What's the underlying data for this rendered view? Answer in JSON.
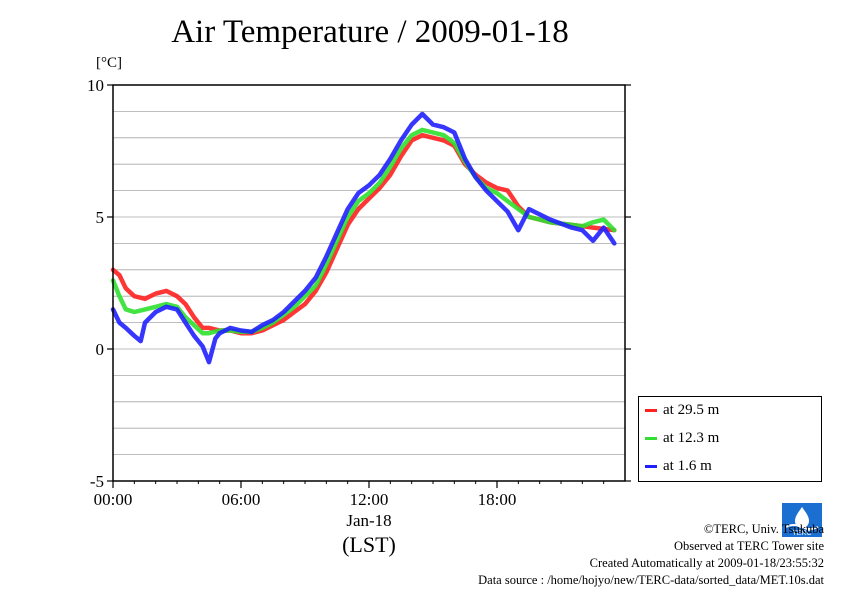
{
  "chart_data": {
    "type": "line",
    "title": "Air Temperature / 2009-01-18",
    "ylabel": "[°C]",
    "xlabel": "(LST)",
    "x_sublabel": "Jan-18",
    "ylim": [
      -5,
      10
    ],
    "xlim_hours": [
      0,
      24
    ],
    "yticks": [
      {
        "v": -5,
        "label": "-5"
      },
      {
        "v": 0,
        "label": "0"
      },
      {
        "v": 5,
        "label": "5"
      },
      {
        "v": 10,
        "label": "10"
      }
    ],
    "xticks": [
      {
        "h": 0,
        "label": "00:00"
      },
      {
        "h": 6,
        "label": "06:00"
      },
      {
        "h": 12,
        "label": "12:00"
      },
      {
        "h": 18,
        "label": "18:00"
      }
    ],
    "grid": true,
    "legend_position": "bottom-right-outside",
    "series": [
      {
        "name": "at 29.5 m",
        "color": "#ff2020",
        "x": [
          0,
          0.3,
          0.6,
          1,
          1.5,
          2,
          2.5,
          3,
          3.4,
          3.8,
          4.2,
          4.5,
          5,
          5.5,
          6,
          6.5,
          7,
          7.5,
          8,
          8.5,
          9,
          9.5,
          10,
          10.5,
          11,
          11.5,
          12,
          12.5,
          13,
          13.5,
          14,
          14.5,
          15,
          15.5,
          16,
          16.5,
          17,
          17.5,
          18,
          18.5,
          19,
          19.5,
          20,
          20.5,
          21,
          21.5,
          22,
          22.5,
          23,
          23.5
        ],
        "y": [
          3.0,
          2.8,
          2.3,
          2.0,
          1.9,
          2.1,
          2.2,
          2.0,
          1.7,
          1.2,
          0.8,
          0.8,
          0.7,
          0.7,
          0.6,
          0.6,
          0.7,
          0.9,
          1.1,
          1.4,
          1.7,
          2.2,
          2.9,
          3.8,
          4.7,
          5.3,
          5.7,
          6.1,
          6.6,
          7.3,
          7.9,
          8.1,
          8.0,
          7.9,
          7.7,
          7.0,
          6.6,
          6.3,
          6.1,
          6.0,
          5.4,
          5.0,
          4.9,
          4.8,
          4.75,
          4.7,
          4.65,
          4.6,
          4.55,
          4.5
        ]
      },
      {
        "name": "at 12.3 m",
        "color": "#30e030",
        "x": [
          0,
          0.3,
          0.6,
          1,
          1.5,
          2,
          2.5,
          3,
          3.4,
          3.8,
          4.2,
          4.5,
          5,
          5.5,
          6,
          6.5,
          7,
          7.5,
          8,
          8.5,
          9,
          9.5,
          10,
          10.5,
          11,
          11.5,
          12,
          12.5,
          13,
          13.5,
          14,
          14.5,
          15,
          15.5,
          16,
          16.5,
          17,
          17.5,
          18,
          18.5,
          19,
          19.5,
          20,
          20.5,
          21,
          21.5,
          22,
          22.5,
          23,
          23.5
        ],
        "y": [
          2.6,
          2.0,
          1.5,
          1.4,
          1.5,
          1.6,
          1.7,
          1.6,
          1.2,
          0.9,
          0.6,
          0.6,
          0.7,
          0.7,
          0.65,
          0.65,
          0.8,
          1.0,
          1.3,
          1.6,
          2.0,
          2.4,
          3.2,
          4.1,
          5.0,
          5.6,
          5.9,
          6.3,
          6.9,
          7.6,
          8.1,
          8.3,
          8.2,
          8.1,
          7.8,
          7.1,
          6.5,
          6.1,
          5.9,
          5.6,
          5.3,
          5.0,
          4.9,
          4.8,
          4.75,
          4.7,
          4.65,
          4.8,
          4.9,
          4.5
        ]
      },
      {
        "name": "at 1.6 m",
        "color": "#2020ff",
        "x": [
          0,
          0.3,
          0.6,
          1,
          1.3,
          1.5,
          2,
          2.5,
          3,
          3.4,
          3.8,
          4.2,
          4.5,
          4.8,
          5,
          5.5,
          6,
          6.5,
          7,
          7.5,
          8,
          8.5,
          9,
          9.5,
          10,
          10.5,
          11,
          11.5,
          12,
          12.5,
          13,
          13.5,
          14,
          14.5,
          15,
          15.5,
          16,
          16.5,
          17,
          17.5,
          18,
          18.5,
          19,
          19.5,
          20,
          20.5,
          21,
          21.5,
          22,
          22.5,
          23,
          23.5
        ],
        "y": [
          1.5,
          1.0,
          0.8,
          0.5,
          0.3,
          1.0,
          1.4,
          1.6,
          1.5,
          1.0,
          0.5,
          0.1,
          -0.5,
          0.4,
          0.6,
          0.8,
          0.7,
          0.65,
          0.9,
          1.1,
          1.4,
          1.8,
          2.2,
          2.7,
          3.5,
          4.4,
          5.3,
          5.9,
          6.2,
          6.6,
          7.2,
          7.9,
          8.5,
          8.9,
          8.5,
          8.4,
          8.2,
          7.2,
          6.5,
          6.0,
          5.6,
          5.2,
          4.5,
          5.3,
          5.1,
          4.9,
          4.75,
          4.6,
          4.5,
          4.1,
          4.6,
          4.0
        ]
      }
    ]
  },
  "footer": {
    "copyright": "©TERC, Univ. Tsukuba",
    "observed": "Observed at TERC Tower site",
    "created": "Created Automatically at 2009-01-18/23:55:32",
    "source": "Data source : /home/hojyo/new/TERC-data/sorted_data/MET.10s.dat"
  },
  "logo": {
    "text": "TERC",
    "color": "#1a6fd0"
  }
}
